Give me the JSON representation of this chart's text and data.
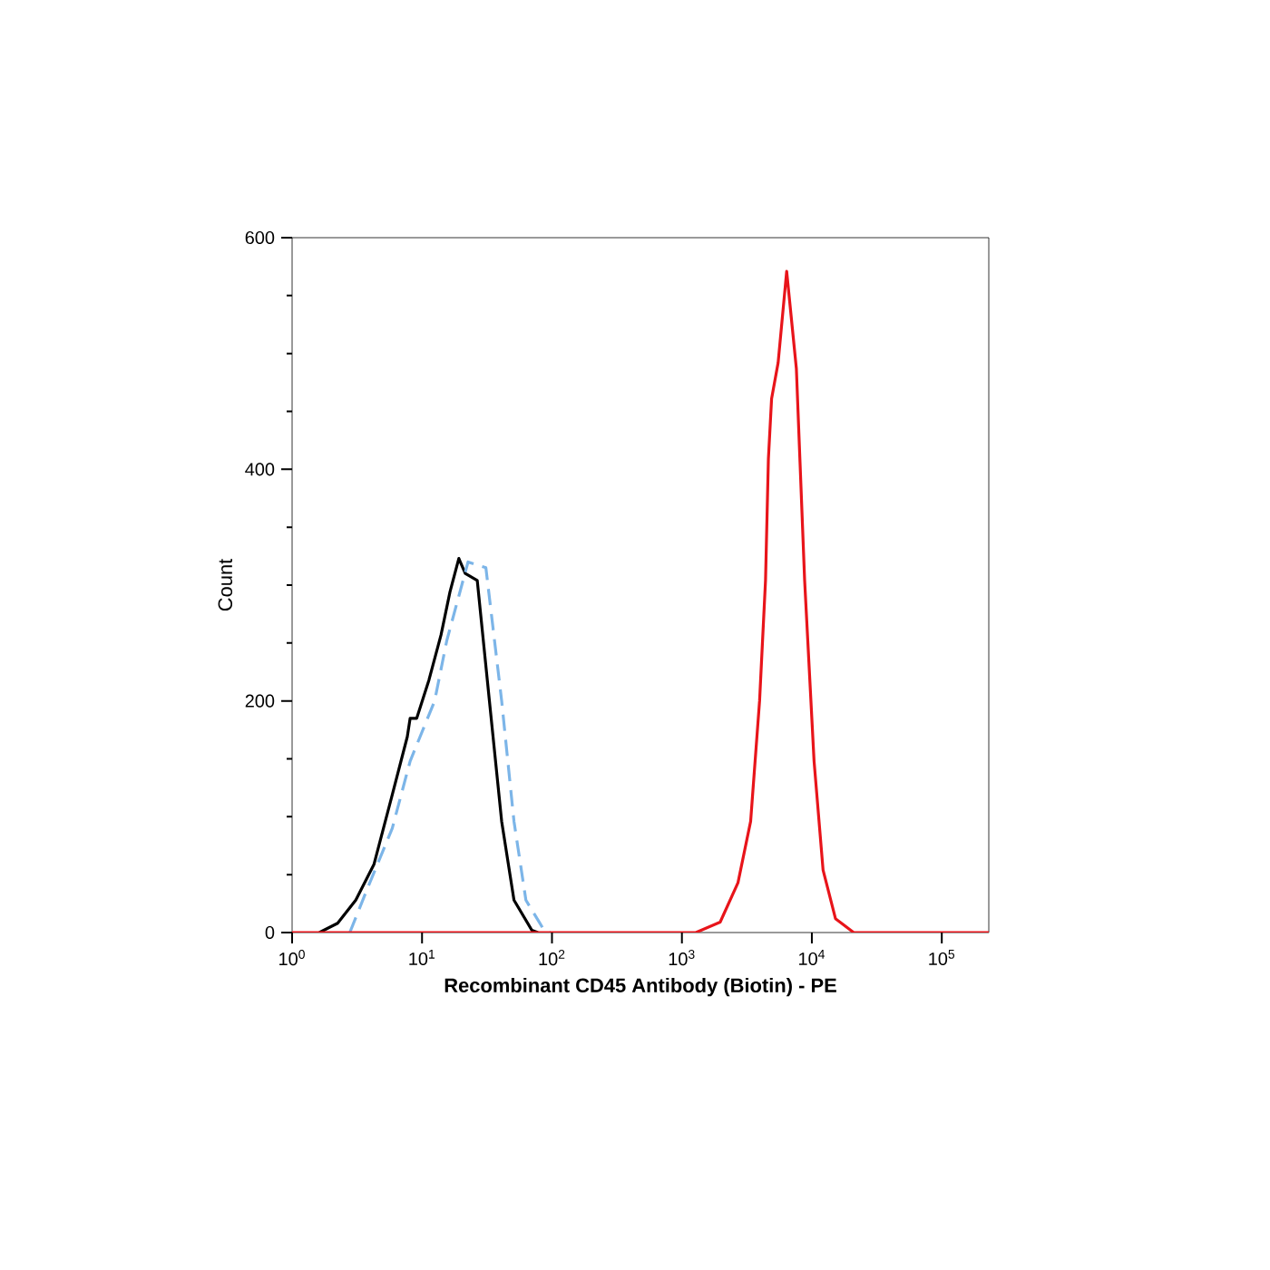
{
  "chart_data": {
    "type": "line",
    "xlabel": "Recombinant CD45 Antibody (Biotin) - PE",
    "ylabel": "Count",
    "log": "x",
    "xlim": [
      1,
      230000
    ],
    "ylim": [
      0,
      600
    ],
    "xticks": [
      {
        "value": 1,
        "label": "10$^{0}$"
      },
      {
        "value": 10,
        "label": "10$^{1}$"
      },
      {
        "value": 100,
        "label": "10$^{2}$"
      },
      {
        "value": 1000,
        "label": "10$^{3}$"
      },
      {
        "value": 10000,
        "label": "10$^{4}$"
      },
      {
        "value": 100000,
        "label": "10$^{5}$"
      }
    ],
    "yticks": [
      0,
      200,
      400,
      600
    ],
    "grid": false,
    "series": [
      {
        "color": "#000000",
        "line_style": "solid",
        "x": [
          1.62,
          2.24,
          3.09,
          4.27,
          5.9,
          7.7,
          8.1,
          9.1,
          11.3,
          14.0,
          16.4,
          19.2,
          21.5,
          26.6,
          33,
          41,
          51,
          70,
          78
        ],
        "values": [
          0,
          8,
          28,
          59,
          119,
          169,
          185,
          185,
          218,
          257,
          294,
          323,
          310,
          304,
          200,
          96,
          28,
          2,
          0
        ]
      },
      {
        "color": "#7cb5e8",
        "line_style": "dashed",
        "x": [
          2.78,
          3.8,
          5.9,
          8.1,
          12.5,
          15.5,
          22.6,
          31,
          41,
          51,
          63,
          87,
          97
        ],
        "values": [
          0,
          38,
          90,
          148,
          200,
          252,
          320,
          315,
          200,
          96,
          28,
          2,
          0
        ]
      },
      {
        "color": "#e8141a",
        "line_style": "solid",
        "x": [
          1,
          1280,
          1970,
          2700,
          3380,
          3960,
          4400,
          4630,
          4900,
          5500,
          6400,
          7600,
          8800,
          10400,
          12200,
          15200,
          21000,
          230000
        ],
        "values": [
          0,
          0,
          9,
          43,
          96,
          200,
          304,
          409,
          461,
          492,
          571,
          487,
          304,
          148,
          54,
          12,
          0,
          0
        ]
      }
    ]
  }
}
